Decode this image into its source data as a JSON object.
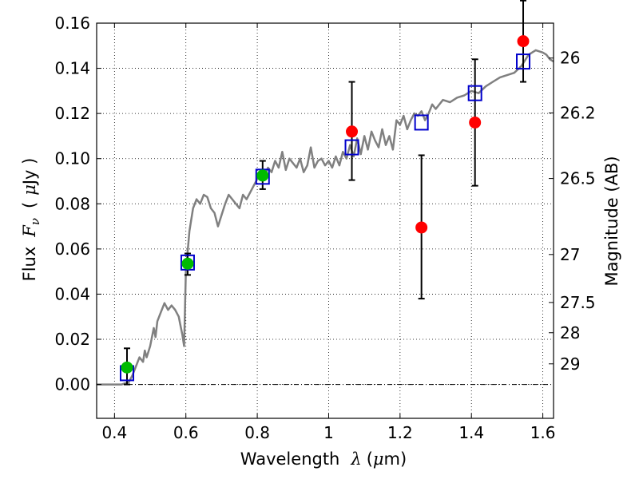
{
  "chart_data": {
    "type": "scatter",
    "xlabel": {
      "prefix": "Wavelength",
      "symbol": "λ",
      "unit_open": "(",
      "unit_mu": "μ",
      "unit_rest": "m)"
    },
    "ylabel": {
      "prefix": "Flux",
      "symbol": "F",
      "sub": "ν",
      "unit_open": "(",
      "unit_mu": "μ",
      "unit_rest": "Jy )"
    },
    "y2label": "Magnitude (AB)",
    "xlim": [
      0.35,
      1.63
    ],
    "ylim": [
      -0.015,
      0.16
    ],
    "x_ticks": [
      {
        "value": 0.4,
        "label": "0.4"
      },
      {
        "value": 0.6,
        "label": "0.6"
      },
      {
        "value": 0.8,
        "label": "0.8"
      },
      {
        "value": 1.0,
        "label": "1"
      },
      {
        "value": 1.2,
        "label": "1.2"
      },
      {
        "value": 1.4,
        "label": "1.4"
      },
      {
        "value": 1.6,
        "label": "1.6"
      }
    ],
    "y_ticks": [
      {
        "value": 0.0,
        "label": "0.00"
      },
      {
        "value": 0.02,
        "label": "0.02"
      },
      {
        "value": 0.04,
        "label": "0.04"
      },
      {
        "value": 0.06,
        "label": "0.06"
      },
      {
        "value": 0.08,
        "label": "0.08"
      },
      {
        "value": 0.1,
        "label": "0.10"
      },
      {
        "value": 0.12,
        "label": "0.12"
      },
      {
        "value": 0.14,
        "label": "0.14"
      },
      {
        "value": 0.16,
        "label": "0.16"
      }
    ],
    "mag_ticks": [
      {
        "mag": 26,
        "label": "26"
      },
      {
        "mag": 26.2,
        "label": "26.2"
      },
      {
        "mag": 26.5,
        "label": "26.5"
      },
      {
        "mag": 27,
        "label": "27"
      },
      {
        "mag": 27.5,
        "label": "27.5"
      },
      {
        "mag": 28,
        "label": "28"
      },
      {
        "mag": 29,
        "label": "29"
      }
    ],
    "grid": true,
    "zero_line": true,
    "colors": {
      "model": "#808080",
      "green": "#00bb00",
      "red": "#ff0000",
      "box": "#0000cc",
      "errorbar": "#000000"
    },
    "model_sed": {
      "x": [
        0.35,
        0.4,
        0.42,
        0.44,
        0.45,
        0.46,
        0.47,
        0.48,
        0.485,
        0.49,
        0.5,
        0.51,
        0.515,
        0.52,
        0.53,
        0.54,
        0.55,
        0.56,
        0.57,
        0.58,
        0.585,
        0.59,
        0.595,
        0.6,
        0.61,
        0.62,
        0.63,
        0.64,
        0.65,
        0.66,
        0.67,
        0.68,
        0.69,
        0.7,
        0.71,
        0.72,
        0.73,
        0.74,
        0.75,
        0.76,
        0.77,
        0.78,
        0.79,
        0.8,
        0.81,
        0.82,
        0.83,
        0.84,
        0.85,
        0.86,
        0.87,
        0.88,
        0.89,
        0.9,
        0.91,
        0.92,
        0.93,
        0.94,
        0.95,
        0.96,
        0.97,
        0.98,
        0.99,
        1.0,
        1.01,
        1.02,
        1.03,
        1.04,
        1.05,
        1.06,
        1.07,
        1.08,
        1.09,
        1.1,
        1.11,
        1.12,
        1.13,
        1.14,
        1.15,
        1.16,
        1.17,
        1.18,
        1.19,
        1.2,
        1.21,
        1.22,
        1.23,
        1.24,
        1.25,
        1.26,
        1.27,
        1.28,
        1.29,
        1.3,
        1.32,
        1.34,
        1.36,
        1.38,
        1.4,
        1.42,
        1.44,
        1.46,
        1.48,
        1.5,
        1.52,
        1.54,
        1.56,
        1.58,
        1.6,
        1.61,
        1.62,
        1.63
      ],
      "y": [
        0.0,
        0.0,
        0.0,
        0.001,
        0.004,
        0.008,
        0.012,
        0.01,
        0.015,
        0.012,
        0.017,
        0.025,
        0.021,
        0.028,
        0.032,
        0.036,
        0.033,
        0.035,
        0.033,
        0.03,
        0.026,
        0.022,
        0.017,
        0.05,
        0.068,
        0.078,
        0.082,
        0.08,
        0.084,
        0.083,
        0.078,
        0.076,
        0.07,
        0.075,
        0.08,
        0.084,
        0.082,
        0.08,
        0.078,
        0.084,
        0.082,
        0.085,
        0.088,
        0.091,
        0.093,
        0.092,
        0.096,
        0.094,
        0.099,
        0.096,
        0.103,
        0.095,
        0.1,
        0.098,
        0.096,
        0.1,
        0.094,
        0.097,
        0.105,
        0.096,
        0.099,
        0.1,
        0.097,
        0.099,
        0.096,
        0.101,
        0.097,
        0.103,
        0.1,
        0.106,
        0.101,
        0.109,
        0.102,
        0.11,
        0.104,
        0.112,
        0.108,
        0.105,
        0.113,
        0.106,
        0.11,
        0.104,
        0.117,
        0.115,
        0.119,
        0.113,
        0.117,
        0.12,
        0.119,
        0.121,
        0.117,
        0.12,
        0.124,
        0.122,
        0.126,
        0.125,
        0.127,
        0.128,
        0.13,
        0.129,
        0.132,
        0.134,
        0.136,
        0.137,
        0.138,
        0.141,
        0.146,
        0.148,
        0.147,
        0.146,
        0.144,
        0.143
      ]
    },
    "model_points": {
      "x": [
        0.435,
        0.605,
        0.815,
        1.065,
        1.26,
        1.41,
        1.545
      ],
      "y": [
        0.005,
        0.054,
        0.092,
        0.105,
        0.116,
        0.129,
        0.143
      ]
    },
    "detections": [
      {
        "x": 0.435,
        "y": 0.0075,
        "err_low": 0.0075,
        "err_high": 0.0085
      },
      {
        "x": 0.605,
        "y": 0.0535,
        "err_low": 0.005,
        "err_high": 0.0045
      },
      {
        "x": 0.815,
        "y": 0.0925,
        "err_low": 0.006,
        "err_high": 0.0065
      }
    ],
    "upper_limits": [
      {
        "x": 1.065,
        "y": 0.112,
        "err_low": 0.0215,
        "err_high": 0.022
      },
      {
        "x": 1.26,
        "y": 0.0695,
        "err_low": 0.0315,
        "err_high": 0.032
      },
      {
        "x": 1.41,
        "y": 0.116,
        "err_low": 0.028,
        "err_high": 0.028
      },
      {
        "x": 1.545,
        "y": 0.152,
        "err_low": 0.018,
        "err_high": 0.018
      }
    ]
  }
}
